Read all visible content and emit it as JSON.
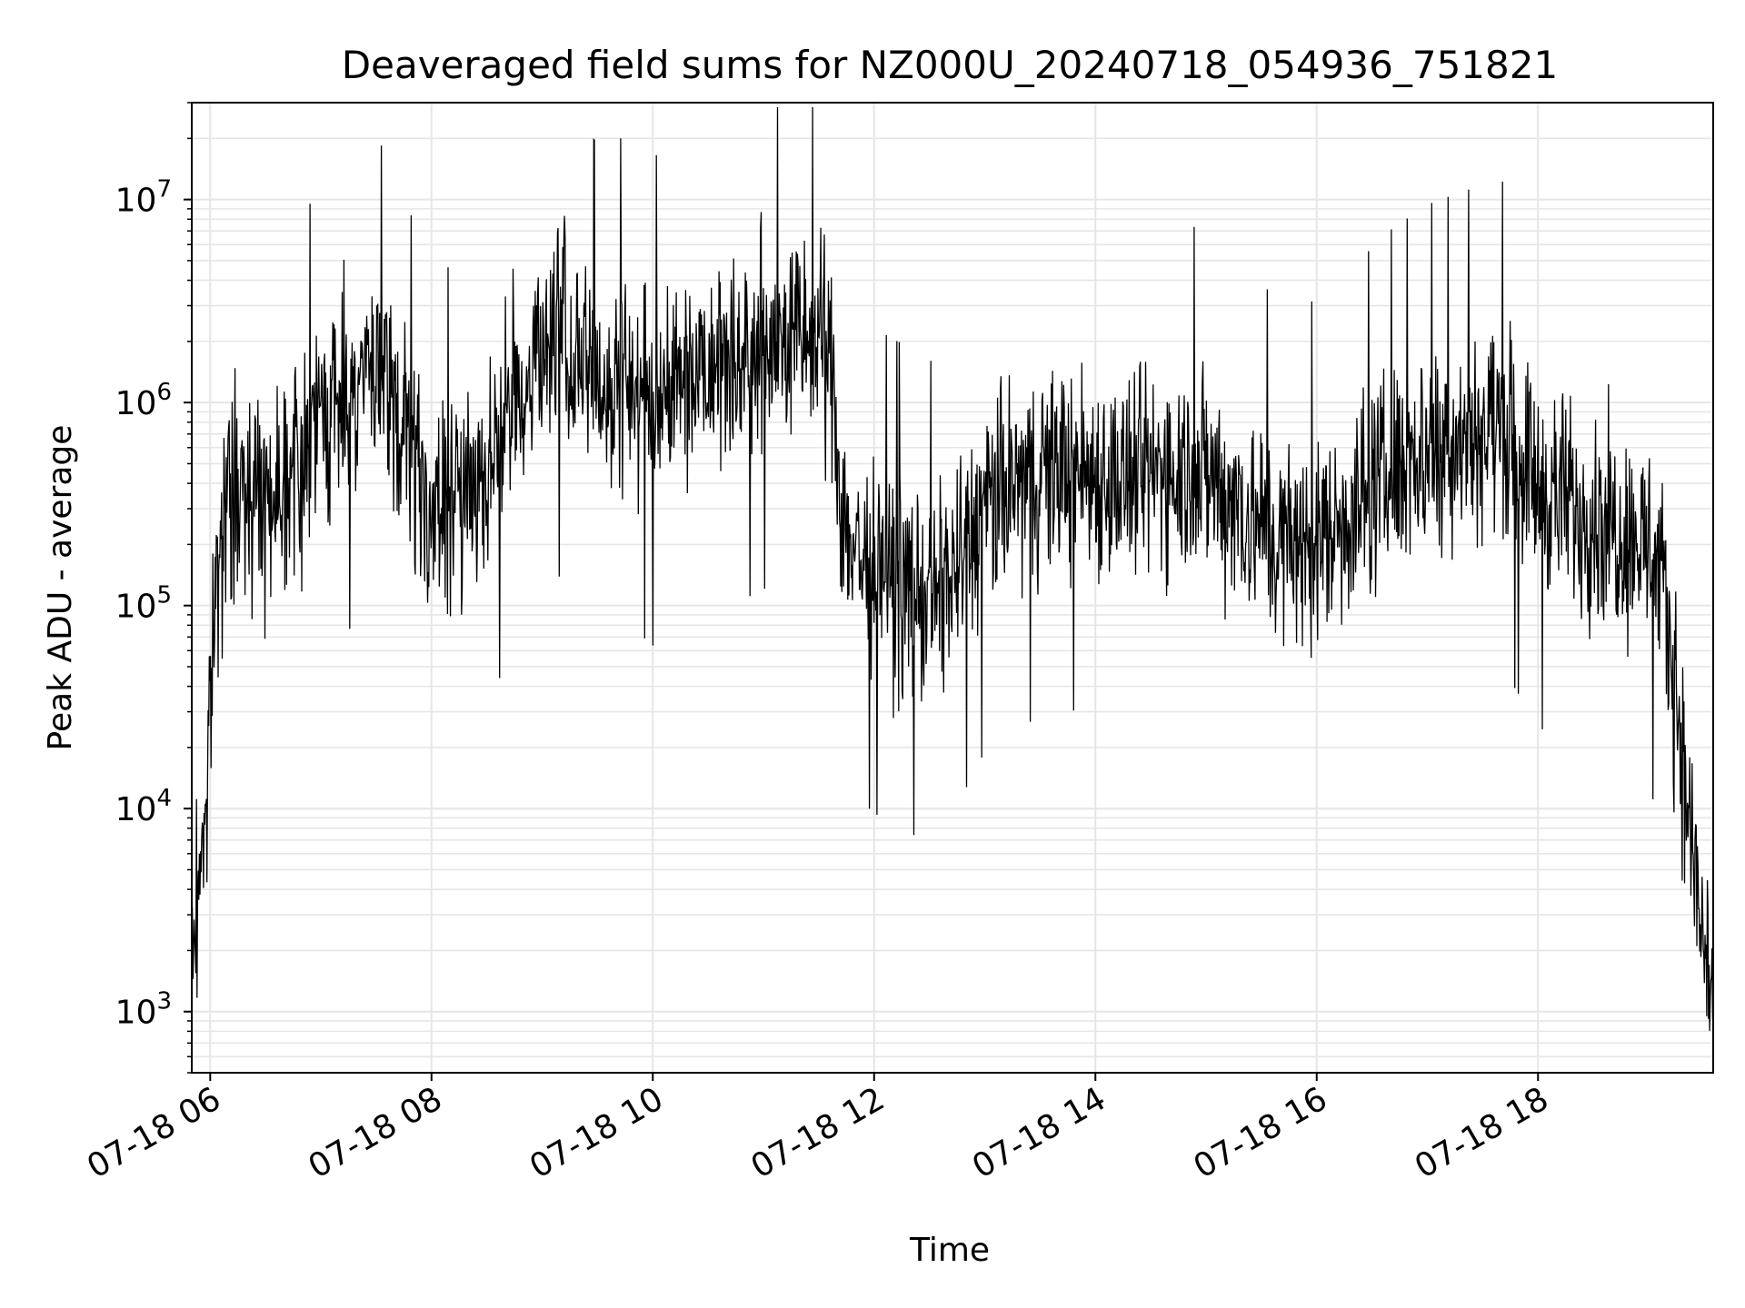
{
  "chart_data": {
    "type": "line",
    "title": "Deaveraged field sums for NZ000U_20240718_054936_751821",
    "xlabel": "Time",
    "ylabel": "Peak ADU - average",
    "yscale": "log",
    "ylim": [
      500,
      30000000
    ],
    "xlim": [
      "2024-07-18 05:50",
      "2024-07-18 19:35"
    ],
    "grid": true,
    "line_color": "#000000",
    "grid_color": "#e6e6e6",
    "x_ticks": [
      "2024-07-18 06:00",
      "2024-07-18 08:00",
      "2024-07-18 10:00",
      "2024-07-18 12:00",
      "2024-07-18 14:00",
      "2024-07-18 16:00",
      "2024-07-18 18:00"
    ],
    "x_tick_labels": [
      "07-18 06",
      "07-18 08",
      "07-18 10",
      "07-18 12",
      "07-18 14",
      "07-18 16",
      "07-18 18"
    ],
    "y_ticks": [
      1000,
      10000,
      100000,
      1000000,
      10000000
    ],
    "y_tick_labels": [
      {
        "base": "10",
        "exp": "3"
      },
      {
        "base": "10",
        "exp": "4"
      },
      {
        "base": "10",
        "exp": "5"
      },
      {
        "base": "10",
        "exp": "6"
      },
      {
        "base": "10",
        "exp": "7"
      }
    ],
    "series": [
      {
        "x": [
          "05:50",
          "05:52",
          "05:55",
          "05:58",
          "06:00",
          "06:03",
          "06:06",
          "06:10",
          "06:15",
          "06:20",
          "06:30",
          "06:40",
          "06:50",
          "07:00",
          "07:10",
          "07:20",
          "07:30",
          "07:40",
          "07:50",
          "07:55",
          "08:00",
          "08:10",
          "08:20",
          "08:30",
          "08:40",
          "08:50",
          "09:00",
          "09:10",
          "09:20",
          "09:30",
          "09:40",
          "09:50",
          "10:00",
          "10:10",
          "10:20",
          "10:30",
          "10:40",
          "10:50",
          "11:00",
          "11:10",
          "11:20",
          "11:30",
          "11:38",
          "11:42",
          "11:50",
          "12:00",
          "12:10",
          "12:20",
          "12:30",
          "12:40",
          "12:50",
          "13:00",
          "13:20",
          "13:40",
          "14:00",
          "14:20",
          "14:40",
          "15:00",
          "15:20",
          "15:40",
          "16:00",
          "16:20",
          "16:40",
          "17:00",
          "17:20",
          "17:40",
          "18:00",
          "18:20",
          "18:40",
          "19:00",
          "19:05",
          "19:10",
          "19:15",
          "19:20",
          "19:25",
          "19:30",
          "19:35"
        ],
        "y": [
          1500,
          3000,
          6000,
          12000,
          30000,
          120000,
          250000,
          300000,
          350000,
          400000,
          350000,
          450000,
          500000,
          800000,
          1000000,
          1400000,
          1300000,
          900000,
          500000,
          400000,
          250000,
          300000,
          400000,
          500000,
          800000,
          1200000,
          2000000,
          2200000,
          1500000,
          1200000,
          1300000,
          1200000,
          1000000,
          1300000,
          1500000,
          1800000,
          1700000,
          1700000,
          1900000,
          2000000,
          2100000,
          1900000,
          1500000,
          300000,
          180000,
          150000,
          130000,
          120000,
          100000,
          130000,
          200000,
          300000,
          400000,
          500000,
          450000,
          400000,
          500000,
          450000,
          300000,
          200000,
          200000,
          300000,
          450000,
          600000,
          700000,
          800000,
          400000,
          300000,
          250000,
          200000,
          150000,
          80000,
          40000,
          12000,
          5000,
          2000,
          1500
        ],
        "spread": 3.5
      }
    ]
  }
}
